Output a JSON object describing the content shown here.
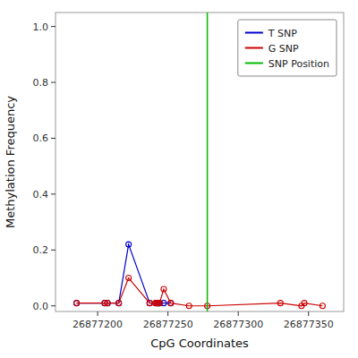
{
  "chart_data": {
    "type": "line",
    "xlabel": "CpG Coordinates",
    "ylabel": "Methylation Frequency",
    "xlim": [
      26877170,
      26877375
    ],
    "ylim": [
      -0.02,
      1.05
    ],
    "xticks": [
      26877200,
      26877250,
      26877300,
      26877350
    ],
    "yticks": [
      {
        "value": 0.0,
        "label": "0.0"
      },
      0.2,
      0.4,
      0.6,
      0.8,
      {
        "value": 1.0,
        "label": "1.0"
      }
    ],
    "grid": false,
    "legend": "upper right",
    "series": [
      {
        "name": "T SNP",
        "color": "#0000cc",
        "marker": "circle",
        "x": [
          26877185,
          26877205,
          26877207,
          26877215,
          26877222,
          26877237,
          26877242,
          26877243,
          26877244,
          26877247,
          26877252
        ],
        "values": [
          0.01,
          0.01,
          0.01,
          0.01,
          0.22,
          0.01,
          0.01,
          0.01,
          0.01,
          0.01,
          0.01
        ]
      },
      {
        "name": "G SNP",
        "color": "#cc0000",
        "marker": "circle",
        "x": [
          26877185,
          26877205,
          26877207,
          26877215,
          26877222,
          26877237,
          26877241,
          26877242,
          26877243,
          26877244,
          26877247,
          26877252,
          26877265,
          26877278,
          26877330,
          26877345,
          26877347,
          26877360
        ],
        "values": [
          0.01,
          0.01,
          0.01,
          0.01,
          0.1,
          0.01,
          0.01,
          0.01,
          0.01,
          0.01,
          0.06,
          0.01,
          0.0,
          0.0,
          0.01,
          0.0,
          0.01,
          0.0
        ]
      },
      {
        "name": "SNP Position",
        "color": "#00bb00",
        "type": "vline",
        "x": [
          26877278
        ]
      }
    ]
  }
}
